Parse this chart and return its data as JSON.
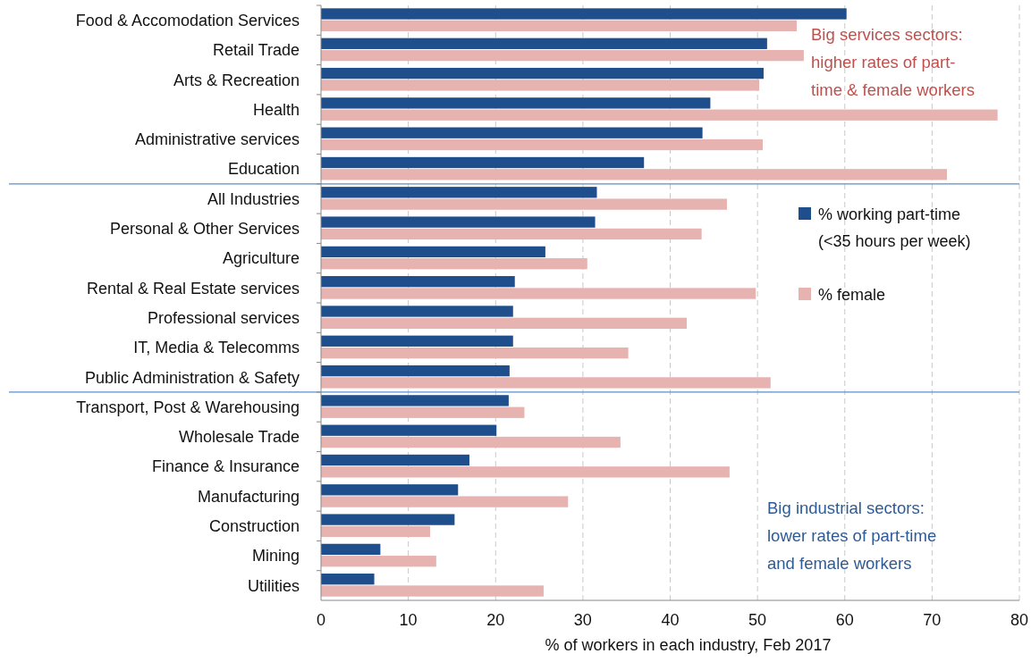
{
  "chart_data": {
    "type": "bar",
    "orientation": "horizontal",
    "xlabel": "% of workers in each industry, Feb 2017",
    "categories": [
      "Food & Accomodation Services",
      "Retail Trade",
      "Arts & Recreation",
      "Health",
      "Administrative services",
      "Education",
      "All Industries",
      "Personal & Other Services",
      "Agriculture",
      "Rental & Real Estate services",
      "Professional services",
      "IT, Media & Telecomms",
      "Public Administration & Safety",
      "Transport, Post & Warehousing",
      "Wholesale Trade",
      "Finance & Insurance",
      "Manufacturing",
      "Construction",
      "Mining",
      "Utilities"
    ],
    "series": [
      {
        "name": "% working part-time (<35 hours per week)",
        "color": "#1f4e8c",
        "values": [
          60.2,
          51.1,
          50.7,
          44.6,
          43.7,
          37.0,
          31.6,
          31.4,
          25.7,
          22.2,
          22.0,
          22.0,
          21.6,
          21.5,
          20.1,
          17.0,
          15.7,
          15.3,
          6.8,
          6.1
        ]
      },
      {
        "name": "% female",
        "color": "#e6b3b1",
        "values": [
          54.5,
          55.3,
          50.2,
          77.5,
          50.6,
          71.7,
          46.5,
          43.6,
          30.5,
          49.8,
          41.9,
          35.2,
          51.5,
          23.3,
          34.3,
          46.8,
          28.3,
          12.5,
          13.2,
          25.5
        ]
      }
    ],
    "xlim": [
      0,
      80
    ],
    "xticks": [
      0,
      10,
      20,
      30,
      40,
      50,
      60,
      70,
      80
    ],
    "grid": "x",
    "legend": "right",
    "annotations": [
      "Big services sectors: higher rates of part-time & female workers",
      "Big industrial sectors: lower rates of part-time and female workers"
    ]
  }
}
